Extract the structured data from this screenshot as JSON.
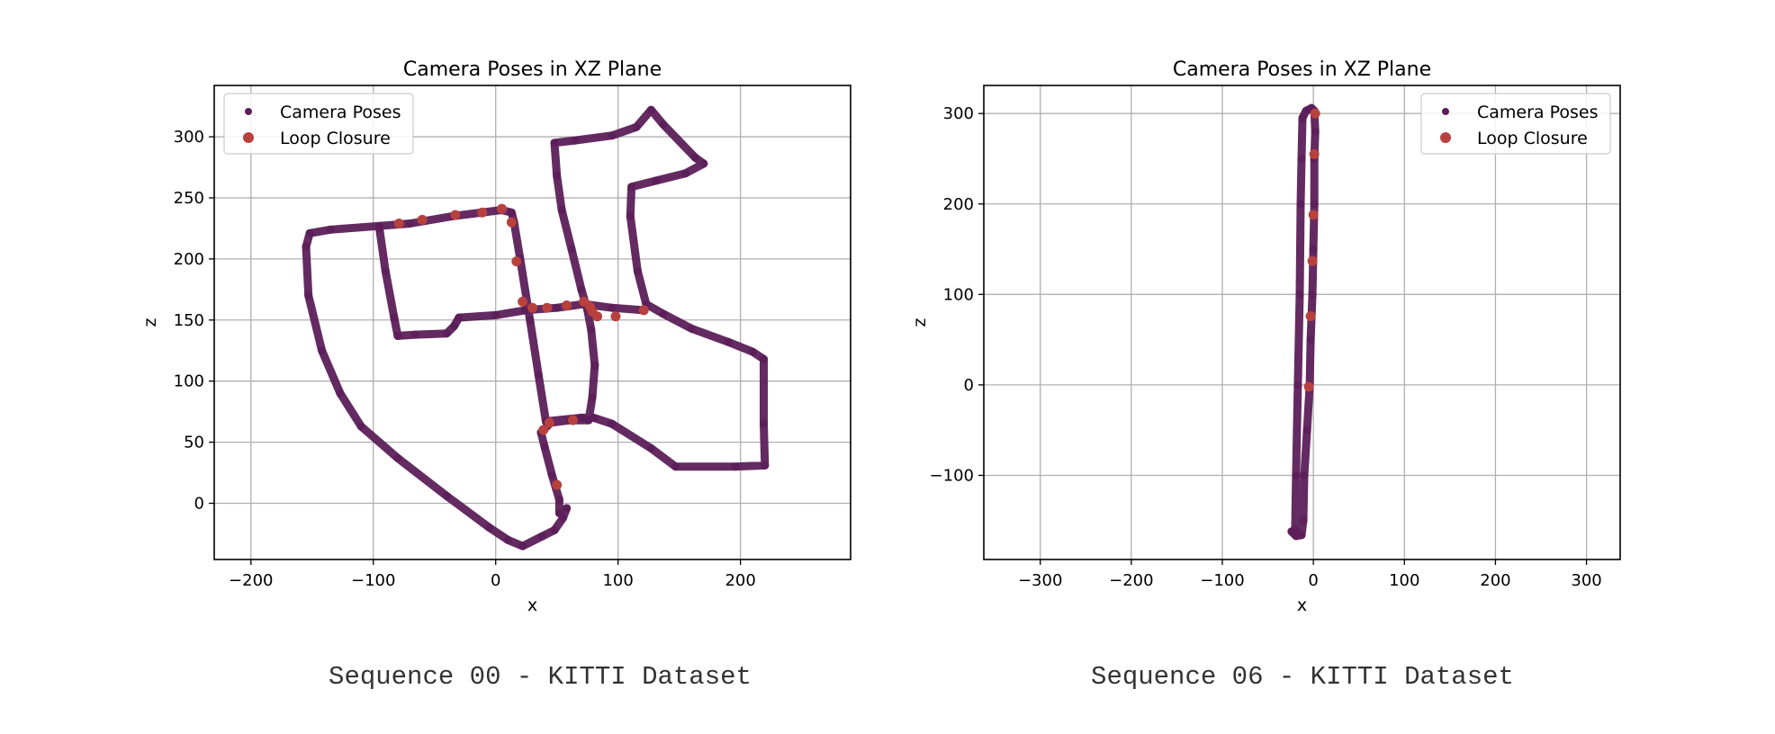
{
  "captions": [
    "Sequence 00 - KITTI Dataset",
    "Sequence 06 - KITTI Dataset"
  ],
  "colors": {
    "poses": "#5c1f5a",
    "loop": "#b8413e",
    "grid": "#b0b0b0",
    "axes": "#000000"
  },
  "chart_data": [
    {
      "type": "scatter",
      "title": "Camera Poses in XZ Plane",
      "xlabel": "x",
      "ylabel": "z",
      "xlim": [
        -230,
        290
      ],
      "ylim": [
        -46,
        342
      ],
      "xticks": [
        -200,
        -100,
        0,
        100,
        200
      ],
      "yticks": [
        0,
        50,
        100,
        150,
        200,
        250,
        300
      ],
      "xtick_labels": [
        "−200",
        "−100",
        "0",
        "100",
        "200"
      ],
      "ytick_labels": [
        "0",
        "50",
        "100",
        "150",
        "200",
        "250",
        "300"
      ],
      "grid": true,
      "legend_position": "upper-left",
      "series": [
        {
          "name": "Camera Poses",
          "points": [
            [
              52,
              -8
            ],
            [
              52,
              3
            ],
            [
              46,
              23
            ],
            [
              40,
              46
            ],
            [
              37,
              58
            ],
            [
              45,
              66
            ],
            [
              61,
              68
            ],
            [
              76,
              68
            ],
            [
              79,
              87
            ],
            [
              81,
              113
            ],
            [
              78,
              142
            ],
            [
              75,
              158
            ],
            [
              70,
              175
            ],
            [
              62,
              208
            ],
            [
              54,
              240
            ],
            [
              50,
              268
            ],
            [
              48,
              295
            ],
            [
              65,
              297
            ],
            [
              95,
              301
            ],
            [
              115,
              308
            ],
            [
              127,
              322
            ],
            [
              137,
              310
            ],
            [
              163,
              283
            ],
            [
              170,
              278
            ],
            [
              155,
              270
            ],
            [
              131,
              264
            ],
            [
              111,
              259
            ],
            [
              110,
              235
            ],
            [
              116,
              190
            ],
            [
              123,
              163
            ],
            [
              137,
              155
            ],
            [
              160,
              143
            ],
            [
              190,
              132
            ],
            [
              210,
              124
            ],
            [
              219,
              118
            ],
            [
              219,
              65
            ],
            [
              220,
              31
            ],
            [
              196,
              30
            ],
            [
              147,
              30
            ],
            [
              127,
              45
            ],
            [
              95,
              65
            ],
            [
              80,
              70
            ],
            [
              70,
              70
            ],
            [
              41,
              67
            ],
            [
              35,
              105
            ],
            [
              28,
              150
            ],
            [
              20,
              200
            ],
            [
              15,
              230
            ],
            [
              13,
              238
            ],
            [
              5,
              240
            ],
            [
              -35,
              235
            ],
            [
              -70,
              229
            ],
            [
              -95,
              227
            ],
            [
              -135,
              224
            ],
            [
              -152,
              221
            ],
            [
              -155,
              210
            ],
            [
              -153,
              170
            ],
            [
              -142,
              125
            ],
            [
              -127,
              90
            ],
            [
              -110,
              63
            ],
            [
              -80,
              37
            ],
            [
              -40,
              6
            ],
            [
              -5,
              -20
            ],
            [
              10,
              -30
            ],
            [
              22,
              -35
            ],
            [
              38,
              -27
            ],
            [
              48,
              -22
            ],
            [
              55,
              -12
            ],
            [
              58,
              -4
            ],
            [
              -95,
              225
            ],
            [
              -90,
              190
            ],
            [
              -83,
              152
            ],
            [
              -80,
              137
            ],
            [
              -66,
              138
            ],
            [
              -40,
              139
            ],
            [
              -34,
              145
            ],
            [
              -30,
              152
            ],
            [
              0,
              154
            ],
            [
              24,
              158
            ],
            [
              50,
              160
            ],
            [
              72,
              163
            ],
            [
              95,
              160
            ],
            [
              121,
              158
            ]
          ]
        },
        {
          "name": "Loop Closure",
          "points": [
            [
              -79,
              229
            ],
            [
              -60,
              232
            ],
            [
              -33,
              236
            ],
            [
              -11,
              238
            ],
            [
              5,
              241
            ],
            [
              13,
              230
            ],
            [
              17,
              198
            ],
            [
              22,
              165
            ],
            [
              30,
              160
            ],
            [
              42,
              160
            ],
            [
              58,
              162
            ],
            [
              72,
              165
            ],
            [
              77,
              161
            ],
            [
              79,
              157
            ],
            [
              83,
              153
            ],
            [
              98,
              153
            ],
            [
              121,
              158
            ],
            [
              39,
              60
            ],
            [
              44,
              66
            ],
            [
              63,
              68
            ],
            [
              50,
              15
            ]
          ]
        }
      ]
    },
    {
      "type": "scatter",
      "title": "Camera Poses in XZ Plane",
      "xlabel": "x",
      "ylabel": "z",
      "xlim": [
        -362,
        337
      ],
      "ylim": [
        -193,
        331
      ],
      "xticks": [
        -300,
        -200,
        -100,
        0,
        100,
        200,
        300
      ],
      "yticks": [
        -100,
        0,
        100,
        200,
        300
      ],
      "xtick_labels": [
        "−300",
        "−200",
        "−100",
        "0",
        "100",
        "200",
        "300"
      ],
      "ytick_labels": [
        "−100",
        "0",
        "100",
        "200",
        "300"
      ],
      "grid": true,
      "legend_position": "upper-right",
      "series": [
        {
          "name": "Camera Poses",
          "points": [
            [
              -20,
              -160
            ],
            [
              -19,
              -100
            ],
            [
              -17,
              0
            ],
            [
              -15,
              100
            ],
            [
              -14,
              200
            ],
            [
              -13,
              250
            ],
            [
              -12,
              295
            ],
            [
              -8,
              303
            ],
            [
              -2,
              306
            ],
            [
              1,
              303
            ],
            [
              2,
              280
            ],
            [
              1,
              250
            ],
            [
              1,
              200
            ],
            [
              0,
              150
            ],
            [
              -1,
              100
            ],
            [
              -3,
              50
            ],
            [
              -4,
              0
            ],
            [
              -7,
              -50
            ],
            [
              -10,
              -100
            ],
            [
              -11,
              -150
            ],
            [
              -13,
              -166
            ],
            [
              -19,
              -167
            ],
            [
              -24,
              -162
            ]
          ]
        },
        {
          "name": "Loop Closure",
          "points": [
            [
              2,
              300
            ],
            [
              1,
              255
            ],
            [
              0,
              188
            ],
            [
              -1,
              137
            ],
            [
              -3,
              76
            ],
            [
              -5,
              -2
            ]
          ]
        }
      ]
    }
  ]
}
